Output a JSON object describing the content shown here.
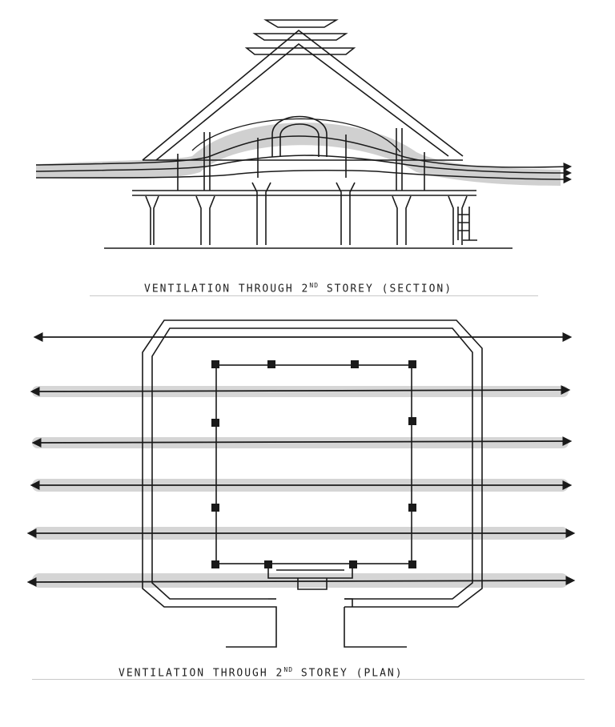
{
  "section": {
    "caption_pre": "VENTILATION THROUGH 2",
    "caption_sup": "ND",
    "caption_post": " STOREY (SECTION)"
  },
  "plan": {
    "caption_pre": "VENTILATION THROUGH 2",
    "caption_sup": "ND",
    "caption_post": " STOREY (PLAN)"
  },
  "colors": {
    "ink": "#1a1a1a",
    "wash": "#b9b9b9"
  }
}
